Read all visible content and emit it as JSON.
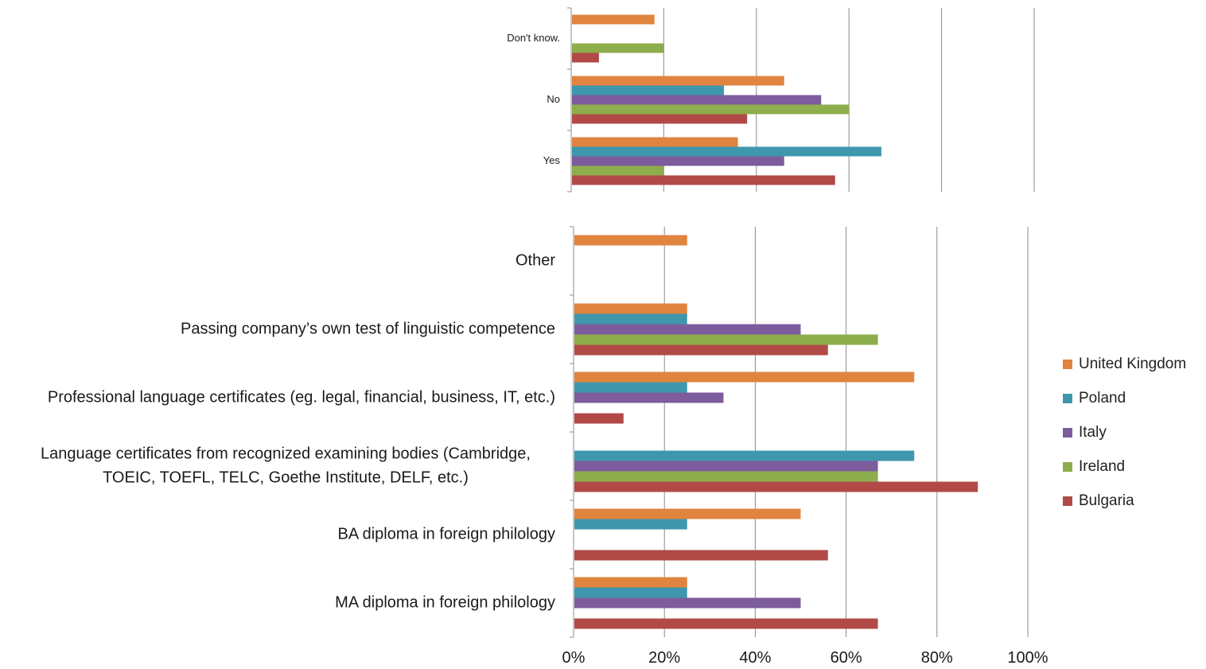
{
  "colors": {
    "United Kingdom": "#E0843F",
    "Poland": "#3E97AD",
    "Italy": "#7D5C9D",
    "Ireland": "#8EAD4D",
    "Bulgaria": "#B14A47"
  },
  "legend": [
    "United Kingdom",
    "Poland",
    "Italy",
    "Ireland",
    "Bulgaria"
  ],
  "chart_data": [
    {
      "type": "bar",
      "orientation": "horizontal",
      "grid": true,
      "xlim": [
        0,
        100
      ],
      "categories": [
        "Yes",
        "No",
        "Don't know."
      ],
      "series": [
        {
          "name": "United Kingdom",
          "values": [
            36,
            46,
            18
          ]
        },
        {
          "name": "Poland",
          "values": [
            67,
            33,
            0
          ]
        },
        {
          "name": "Italy",
          "values": [
            46,
            54,
            0
          ]
        },
        {
          "name": "Ireland",
          "values": [
            20,
            60,
            20
          ]
        },
        {
          "name": "Bulgaria",
          "values": [
            57,
            38,
            6
          ]
        }
      ]
    },
    {
      "type": "bar",
      "orientation": "horizontal",
      "grid": true,
      "xlim": [
        0,
        100
      ],
      "x_tick_labels": [
        "0%",
        "20%",
        "40%",
        "60%",
        "80%",
        "100%"
      ],
      "legend_position": "right",
      "categories": [
        "MA diploma in foreign philology",
        "BA diploma in foreign philology",
        "Language certificates from recognized examining bodies (Cambridge, TOEIC, TOEFL, TELC, Goethe Institute, DELF, etc.)",
        "Professional language certificates (eg. legal, financial, business, IT, etc.)",
        "Passing company’s own test of linguistic competence",
        "Other"
      ],
      "category_lines": [
        [
          "MA diploma in foreign philology"
        ],
        [
          "BA diploma in foreign philology"
        ],
        [
          "Language certificates from recognized examining bodies (Cambridge,",
          "TOEIC, TOEFL, TELC, Goethe Institute, DELF, etc.)"
        ],
        [
          "Professional language certificates (eg. legal, financial, business, IT, etc.)"
        ],
        [
          "Passing company’s own test of linguistic competence"
        ],
        [
          "Other"
        ]
      ],
      "series": [
        {
          "name": "United Kingdom",
          "values": [
            25,
            50,
            0,
            75,
            25,
            25
          ]
        },
        {
          "name": "Poland",
          "values": [
            25,
            25,
            75,
            25,
            25,
            0
          ]
        },
        {
          "name": "Italy",
          "values": [
            50,
            0,
            67,
            33,
            50,
            0
          ]
        },
        {
          "name": "Ireland",
          "values": [
            0,
            0,
            67,
            0,
            67,
            0
          ]
        },
        {
          "name": "Bulgaria",
          "values": [
            67,
            56,
            89,
            11,
            56,
            0
          ]
        }
      ]
    }
  ]
}
